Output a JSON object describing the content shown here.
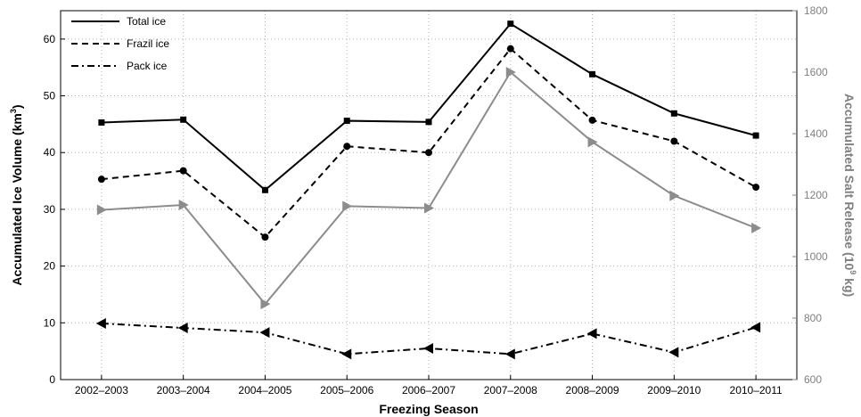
{
  "chart_data": {
    "type": "line",
    "categories": [
      "2002–2003",
      "2003–2004",
      "2004–2005",
      "2005–2006",
      "2006–2007",
      "2007–2008",
      "2008–2009",
      "2009–2010",
      "2010–2011"
    ],
    "xlabel": "Freezing Season",
    "ylabel_main": "Accumulated Ice Volume (km",
    "ylabel_main_sup": "3",
    "ylabel_main_end": ")",
    "ylabel_right": "Accumulated Salt Release (10",
    "ylabel_right_sup": "9",
    "ylabel_right_end": " kg)",
    "ylim_left": [
      0,
      65
    ],
    "yticks_left": [
      0,
      10,
      20,
      30,
      40,
      50,
      60
    ],
    "ylim_right": [
      600,
      1800
    ],
    "yticks_right": [
      600,
      800,
      1000,
      1200,
      1400,
      1600,
      1800
    ],
    "grid": true,
    "legend_position": "top-left",
    "series": [
      {
        "name": "Total ice",
        "axis": "left",
        "style": "solid",
        "marker": "square",
        "color": "#000000",
        "values": [
          45.3,
          45.8,
          33.4,
          45.6,
          45.4,
          62.7,
          53.8,
          46.9,
          43.0
        ]
      },
      {
        "name": "Frazil ice",
        "axis": "left",
        "style": "dashed",
        "marker": "circle",
        "color": "#000000",
        "values": [
          35.3,
          36.8,
          25.1,
          41.1,
          40.0,
          58.3,
          45.7,
          42.0,
          33.9
        ]
      },
      {
        "name": "Pack ice",
        "axis": "left",
        "style": "dashdot",
        "marker": "triangle-left",
        "color": "#000000",
        "values": [
          9.9,
          9.1,
          8.3,
          4.5,
          5.5,
          4.5,
          8.1,
          4.8,
          9.2
        ]
      },
      {
        "axis": "right",
        "style": "solid",
        "marker": "triangle-right",
        "color": "#8c8c8c",
        "values": [
          1152,
          1168,
          846,
          1164,
          1158,
          1600,
          1373,
          1198,
          1093
        ]
      }
    ]
  }
}
